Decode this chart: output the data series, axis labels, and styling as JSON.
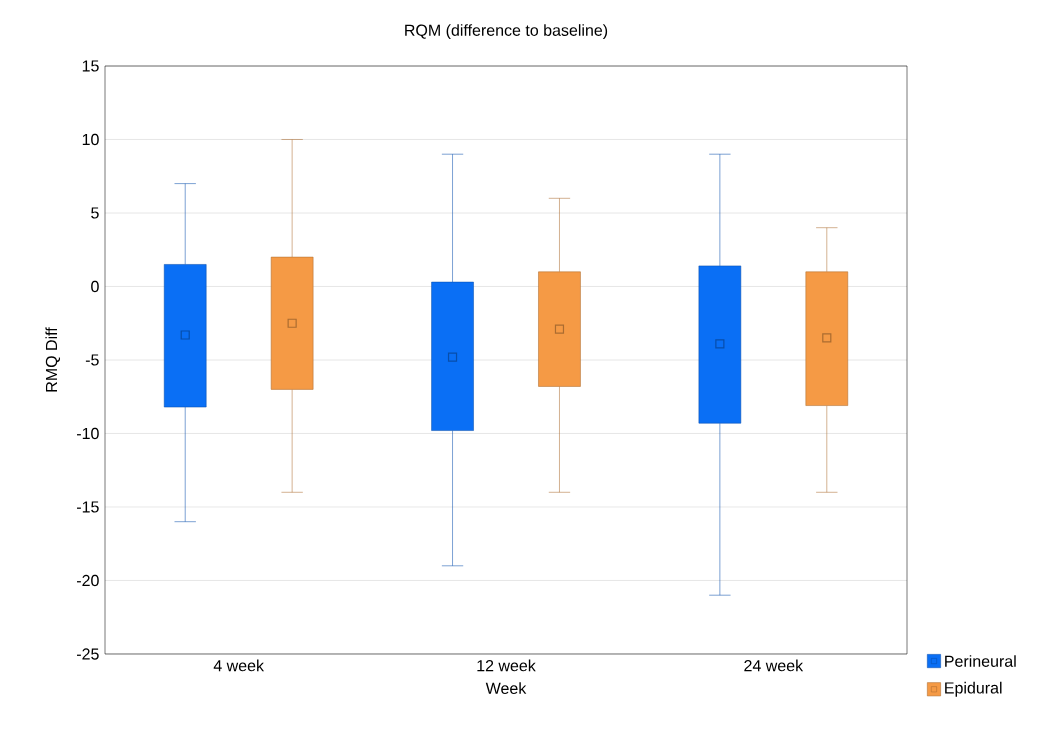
{
  "chart_data": {
    "type": "box",
    "title": "RQM (difference to baseline)",
    "xlabel": "Week",
    "ylabel": "RMQ Diff",
    "categories": [
      "4 week",
      "12 week",
      "24 week"
    ],
    "series": [
      {
        "name": "Perineural",
        "color": "#0a6ff5",
        "boxes": [
          {
            "low": -16,
            "q1": -8.2,
            "median": -3.3,
            "q3": 1.5,
            "high": 7
          },
          {
            "low": -19,
            "q1": -9.8,
            "median": -4.8,
            "q3": 0.3,
            "high": 9
          },
          {
            "low": -21,
            "q1": -9.3,
            "median": -3.9,
            "q3": 1.4,
            "high": 9
          }
        ]
      },
      {
        "name": "Epidural",
        "color": "#f59a45",
        "boxes": [
          {
            "low": -14,
            "q1": -7,
            "median": -2.5,
            "q3": 2,
            "high": 10
          },
          {
            "low": -14,
            "q1": -6.8,
            "median": -2.9,
            "q3": 1,
            "high": 6
          },
          {
            "low": -14,
            "q1": -8.1,
            "median": -3.5,
            "q3": 1,
            "high": 4
          }
        ]
      }
    ],
    "ylim": [
      -25,
      15
    ],
    "yticks": [
      -25,
      -20,
      -15,
      -10,
      -5,
      0,
      5,
      10,
      15
    ],
    "grid": "y",
    "legend": "bottom right"
  }
}
